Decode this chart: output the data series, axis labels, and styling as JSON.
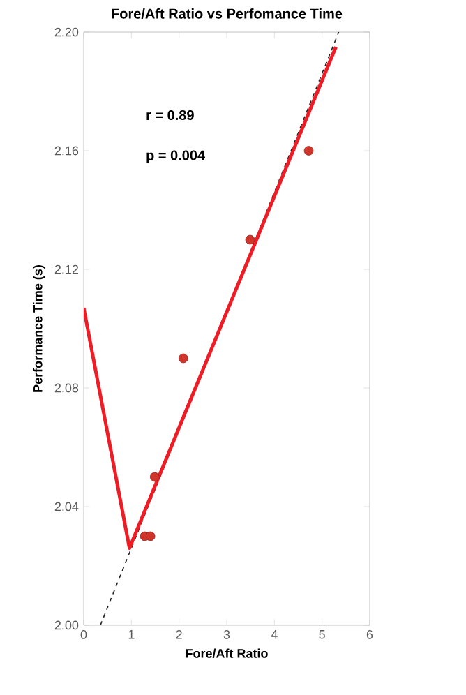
{
  "chart_data": {
    "type": "scatter",
    "title": "Fore/Aft Ratio vs Perfomance Time",
    "xlabel": "Fore/Aft Ratio",
    "ylabel": "Performance Time (s)",
    "xlim": [
      0,
      6
    ],
    "xticks": [
      0,
      1,
      2,
      3,
      4,
      5,
      6
    ],
    "ylim": [
      2.0,
      2.2
    ],
    "yticks": [
      {
        "value": 2.0,
        "label": "2.00"
      },
      {
        "value": 2.04,
        "label": "2.04"
      },
      {
        "value": 2.08,
        "label": "2.08"
      },
      {
        "value": 2.12,
        "label": "2.12"
      },
      {
        "value": 2.16,
        "label": "2.16"
      },
      {
        "value": 2.2,
        "label": "2.20"
      }
    ],
    "grid": false,
    "annotations": [
      "r = 0.89",
      "p = 0.004"
    ],
    "series": [
      {
        "marker": "circle",
        "color": "#d0352b",
        "x": [
          4.72,
          3.49,
          2.09,
          1.49,
          1.28,
          1.4
        ],
        "values": [
          2.16,
          2.13,
          2.09,
          2.05,
          2.03,
          2.03
        ]
      },
      {
        "type": "line",
        "marker": "none",
        "color": "#222222",
        "line_style": "dashed",
        "x": [
          0.35,
          5.35
        ],
        "values": [
          2.0,
          2.2
        ]
      },
      {
        "type": "line",
        "marker": "none",
        "color": "#ee1c25",
        "line_style": "solid",
        "x": [
          0,
          0.96,
          5.29
        ],
        "values": [
          2.107,
          2.026,
          2.195
        ]
      }
    ]
  }
}
